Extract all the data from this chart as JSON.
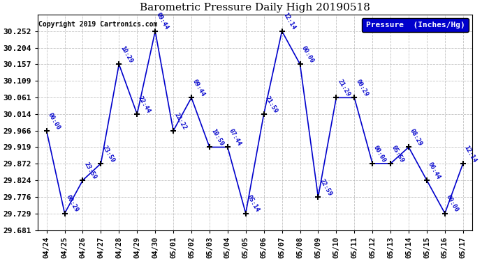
{
  "title": "Barometric Pressure Daily High 20190518",
  "copyright": "Copyright 2019 Cartronics.com",
  "legend_label": "Pressure  (Inches/Hg)",
  "x_labels": [
    "04/24",
    "04/25",
    "04/26",
    "04/27",
    "04/28",
    "04/29",
    "04/30",
    "05/01",
    "05/02",
    "05/03",
    "05/04",
    "05/05",
    "05/06",
    "05/07",
    "05/08",
    "05/09",
    "05/10",
    "05/11",
    "05/12",
    "05/13",
    "05/14",
    "05/15",
    "05/16",
    "05/17"
  ],
  "y_values": [
    29.966,
    29.729,
    29.824,
    29.872,
    30.157,
    30.014,
    30.252,
    29.966,
    30.061,
    29.919,
    29.919,
    29.729,
    30.014,
    30.252,
    30.157,
    29.776,
    30.061,
    30.061,
    29.872,
    29.872,
    29.919,
    29.824,
    29.729,
    29.872
  ],
  "point_labels": [
    "00:00",
    "00:29",
    "23:59",
    "23:59",
    "10:29",
    "22:44",
    "09:44",
    "22:22",
    "09:44",
    "10:59",
    "07:44",
    "05:14",
    "21:59",
    "12:14",
    "00:00",
    "22:59",
    "21:29",
    "00:29",
    "00:00",
    "05:59",
    "08:29",
    "06:44",
    "00:00",
    "12:14"
  ],
  "ylim_min": 29.681,
  "ylim_max": 30.3,
  "yticks": [
    29.681,
    29.729,
    29.776,
    29.824,
    29.872,
    29.919,
    29.966,
    30.014,
    30.061,
    30.109,
    30.157,
    30.204,
    30.252
  ],
  "line_color": "#0000cc",
  "marker_color": "#000000",
  "background_color": "#ffffff",
  "grid_color": "#bbbbbb",
  "label_color": "#0000cc",
  "legend_bg": "#0000cc",
  "legend_fg": "#ffffff",
  "fig_width": 6.9,
  "fig_height": 3.75,
  "dpi": 100
}
